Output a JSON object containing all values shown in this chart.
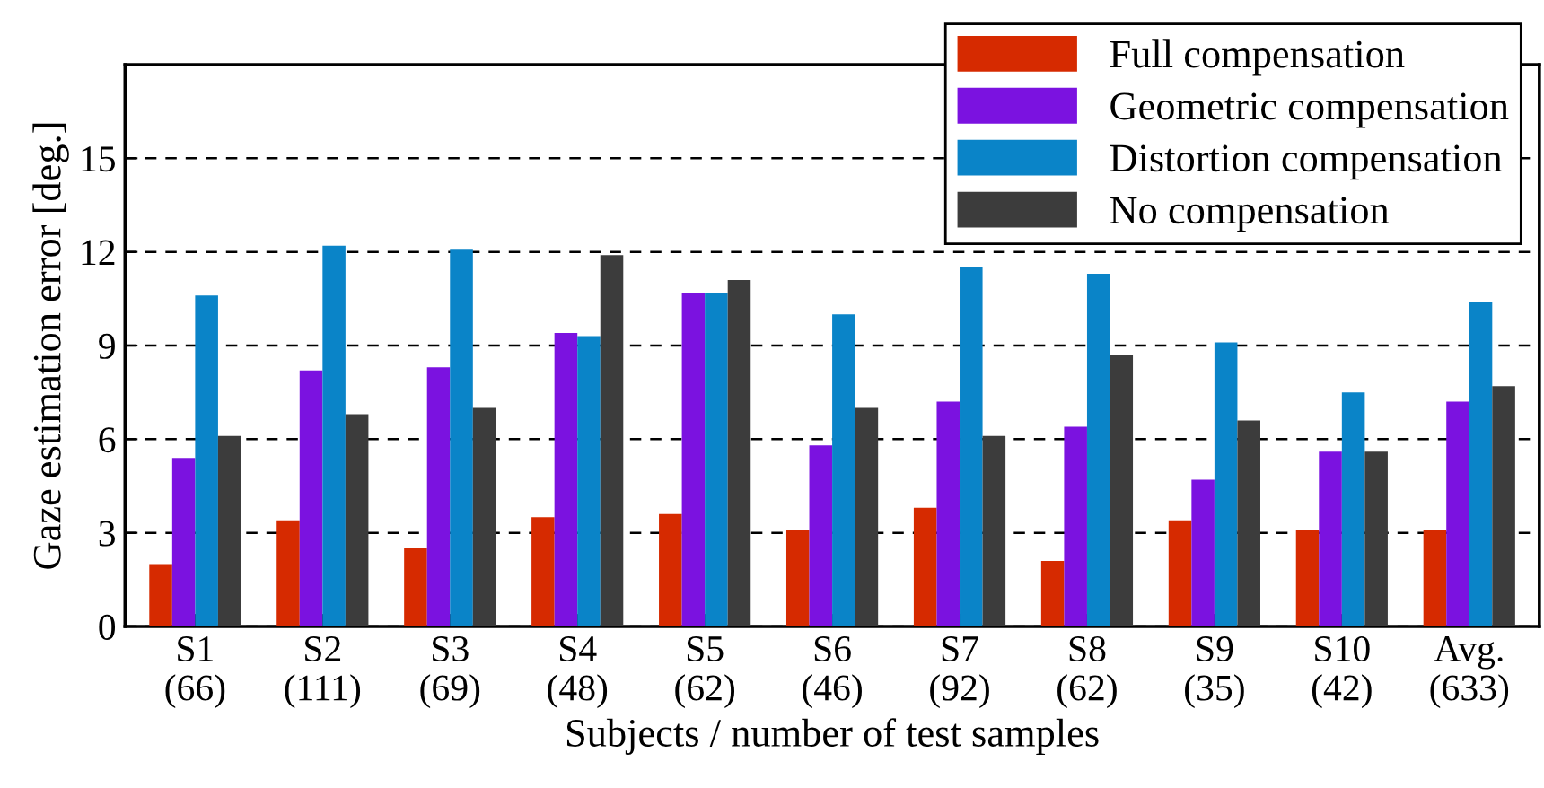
{
  "chart_data": {
    "type": "bar",
    "xlabel": "Subjects / number of test samples",
    "ylabel": "Gaze estimation error [deg.]",
    "categories": [
      "S1\n(66)",
      "S2\n(111)",
      "S3\n(69)",
      "S4\n(48)",
      "S5\n(62)",
      "S6\n(46)",
      "S7\n(92)",
      "S8\n(62)",
      "S9\n(35)",
      "S10\n(42)",
      "Avg.\n(633)"
    ],
    "series": [
      {
        "name": "Full compensation",
        "color": "#d62a00",
        "values": [
          2.0,
          3.4,
          2.5,
          3.5,
          3.6,
          3.1,
          3.8,
          2.1,
          3.4,
          3.1,
          3.1
        ]
      },
      {
        "name": "Geometric compensation",
        "color": "#7b12e0",
        "values": [
          5.4,
          8.2,
          8.3,
          9.4,
          10.7,
          5.8,
          7.2,
          6.4,
          4.7,
          5.6,
          7.2
        ]
      },
      {
        "name": "Distortion compensation",
        "color": "#0a84c8",
        "values": [
          10.6,
          12.2,
          12.1,
          9.3,
          10.7,
          10.0,
          11.5,
          11.3,
          9.1,
          7.5,
          10.4
        ]
      },
      {
        "name": "No compensation",
        "color": "#3c3c3c",
        "values": [
          6.1,
          6.8,
          7.0,
          11.9,
          11.1,
          7.0,
          6.1,
          8.7,
          6.6,
          5.6,
          7.7
        ]
      }
    ],
    "ylim": [
      0,
      18
    ],
    "yticks": [
      0,
      3,
      6,
      9,
      12,
      15
    ],
    "grid": "y",
    "legend": "top right"
  }
}
